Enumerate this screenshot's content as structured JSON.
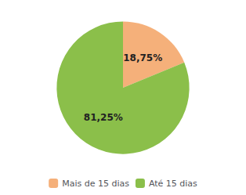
{
  "chart_data": {
    "type": "pie",
    "categories": [
      "Mais de 15 dias",
      "Até 15 dias"
    ],
    "values": [
      18.75,
      81.25
    ],
    "value_labels": [
      "18,75%",
      "81,25%"
    ],
    "colors": [
      "#F5B07A",
      "#8BBF4A"
    ],
    "data_labels": true,
    "legend": "bottom"
  }
}
